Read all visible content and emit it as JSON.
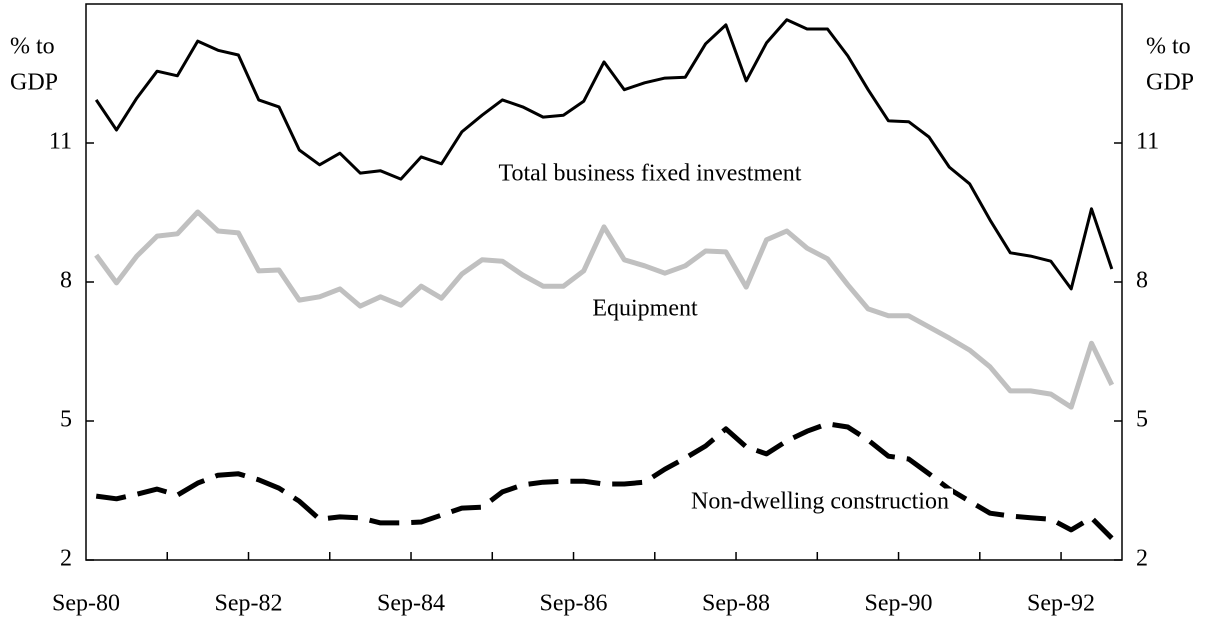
{
  "chart_data": {
    "type": "line",
    "categories": [
      "Sep-80",
      null,
      null,
      null,
      null,
      null,
      null,
      null,
      "Sep-82",
      null,
      null,
      null,
      null,
      null,
      null,
      null,
      "Sep-84",
      null,
      null,
      null,
      null,
      null,
      null,
      null,
      "Sep-86",
      null,
      null,
      null,
      null,
      null,
      null,
      null,
      "Sep-88",
      null,
      null,
      null,
      null,
      null,
      null,
      null,
      "Sep-90",
      null,
      null,
      null,
      null,
      null,
      null,
      null,
      "Sep-92",
      null,
      null
    ],
    "ylabel_lines": [
      "% to",
      "GDP"
    ],
    "y2label_lines": [
      "% to",
      "GDP"
    ],
    "ylim": [
      2,
      14
    ],
    "yticks": [
      2,
      5,
      8,
      11
    ],
    "y2lim": [
      2,
      14
    ],
    "y2ticks": [
      2,
      5,
      8,
      11
    ],
    "series": [
      {
        "name": "Total business fixed investment",
        "color": "#000000",
        "style": "solid",
        "values": [
          11.93,
          11.28,
          11.97,
          12.55,
          12.45,
          13.2,
          13.0,
          12.9,
          11.93,
          11.78,
          10.85,
          10.53,
          10.78,
          10.35,
          10.4,
          10.22,
          10.7,
          10.55,
          11.24,
          11.6,
          11.93,
          11.78,
          11.56,
          11.6,
          11.9,
          12.75,
          12.15,
          12.3,
          12.4,
          12.42,
          13.14,
          13.55,
          12.34,
          13.16,
          13.66,
          13.46,
          13.46,
          12.88,
          12.15,
          11.48,
          11.46,
          11.13,
          10.48,
          10.12,
          9.34,
          8.63,
          8.56,
          8.45,
          7.85,
          9.58,
          8.28
        ]
      },
      {
        "name": "Equipment",
        "color": "#c0c0c0",
        "style": "solid",
        "values": [
          8.58,
          7.98,
          8.56,
          8.99,
          9.04,
          9.51,
          9.1,
          9.06,
          8.24,
          8.26,
          7.61,
          7.68,
          7.85,
          7.48,
          7.68,
          7.5,
          7.91,
          7.65,
          8.17,
          8.48,
          8.45,
          8.15,
          7.91,
          7.91,
          8.24,
          9.19,
          8.48,
          8.35,
          8.19,
          8.35,
          8.67,
          8.65,
          7.89,
          8.91,
          9.1,
          8.73,
          8.5,
          7.94,
          7.42,
          7.27,
          7.27,
          7.03,
          6.79,
          6.53,
          6.17,
          5.65,
          5.65,
          5.58,
          5.3,
          6.68,
          5.78
        ]
      },
      {
        "name": "Non-dwelling construction",
        "color": "#000000",
        "style": "dashed",
        "values": [
          3.38,
          3.32,
          3.42,
          3.53,
          3.4,
          3.66,
          3.83,
          3.86,
          3.73,
          3.55,
          3.27,
          2.88,
          2.93,
          2.91,
          2.8,
          2.8,
          2.82,
          2.97,
          3.12,
          3.14,
          3.47,
          3.62,
          3.68,
          3.7,
          3.7,
          3.64,
          3.64,
          3.68,
          3.96,
          4.2,
          4.46,
          4.83,
          4.44,
          4.29,
          4.57,
          4.78,
          4.94,
          4.87,
          4.59,
          4.24,
          4.18,
          3.86,
          3.53,
          3.27,
          3.01,
          2.95,
          2.91,
          2.88,
          2.65,
          2.91,
          2.47
        ]
      }
    ]
  }
}
